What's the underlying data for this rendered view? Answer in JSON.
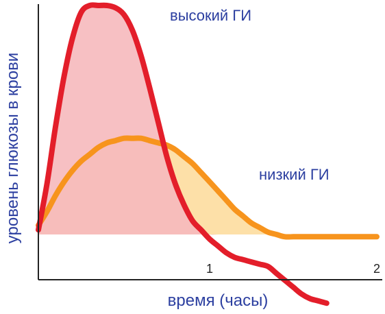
{
  "chart_data": {
    "type": "area",
    "xlabel": "время (часы)",
    "ylabel": "уровень глюкозы в крови",
    "x_ticks": [
      "1",
      "2"
    ],
    "xlim": [
      0,
      2
    ],
    "series": [
      {
        "name": "высокий ГИ",
        "color": "#e31e2a",
        "fill": "#f6b9bd",
        "x": [
          0.0,
          0.05,
          0.1,
          0.15,
          0.2,
          0.25,
          0.3,
          0.35,
          0.4,
          0.45,
          0.5,
          0.55,
          0.6,
          0.65,
          0.7,
          0.75,
          0.8,
          0.85,
          0.9,
          0.95,
          1.0,
          1.05,
          1.1,
          1.15,
          1.2,
          1.25,
          1.3,
          1.35,
          1.4,
          1.45,
          1.5,
          1.55,
          1.6,
          1.65,
          1.7
        ],
        "y": [
          0.02,
          0.22,
          0.47,
          0.69,
          0.86,
          0.97,
          1.0,
          1.0,
          1.0,
          0.99,
          0.96,
          0.89,
          0.78,
          0.64,
          0.49,
          0.34,
          0.22,
          0.13,
          0.06,
          0.02,
          -0.02,
          -0.05,
          -0.08,
          -0.1,
          -0.11,
          -0.12,
          -0.13,
          -0.14,
          -0.17,
          -0.2,
          -0.23,
          -0.26,
          -0.28,
          -0.29,
          -0.3
        ]
      },
      {
        "name": "низкий ГИ",
        "color": "#f7941d",
        "fill": "#fde0a8",
        "x": [
          0.0,
          0.05,
          0.1,
          0.15,
          0.2,
          0.25,
          0.3,
          0.35,
          0.4,
          0.45,
          0.5,
          0.55,
          0.6,
          0.65,
          0.7,
          0.75,
          0.8,
          0.85,
          0.9,
          0.95,
          1.0,
          1.05,
          1.1,
          1.15,
          1.2,
          1.25,
          1.3,
          1.35,
          1.4,
          1.45,
          1.5,
          1.55,
          1.6,
          1.65,
          1.7,
          1.75,
          1.8,
          1.85,
          1.9,
          1.95,
          2.0
        ],
        "y": [
          0.04,
          0.1,
          0.17,
          0.23,
          0.28,
          0.32,
          0.35,
          0.38,
          0.4,
          0.41,
          0.42,
          0.42,
          0.42,
          0.41,
          0.4,
          0.39,
          0.37,
          0.34,
          0.31,
          0.27,
          0.23,
          0.19,
          0.15,
          0.11,
          0.08,
          0.05,
          0.03,
          0.01,
          0.0,
          -0.01,
          -0.01,
          -0.01,
          -0.01,
          -0.01,
          -0.01,
          -0.01,
          -0.01,
          -0.01,
          -0.01,
          -0.01,
          -0.01
        ]
      }
    ],
    "axis_color": "#222222",
    "label_color": "#2c3fa0"
  }
}
